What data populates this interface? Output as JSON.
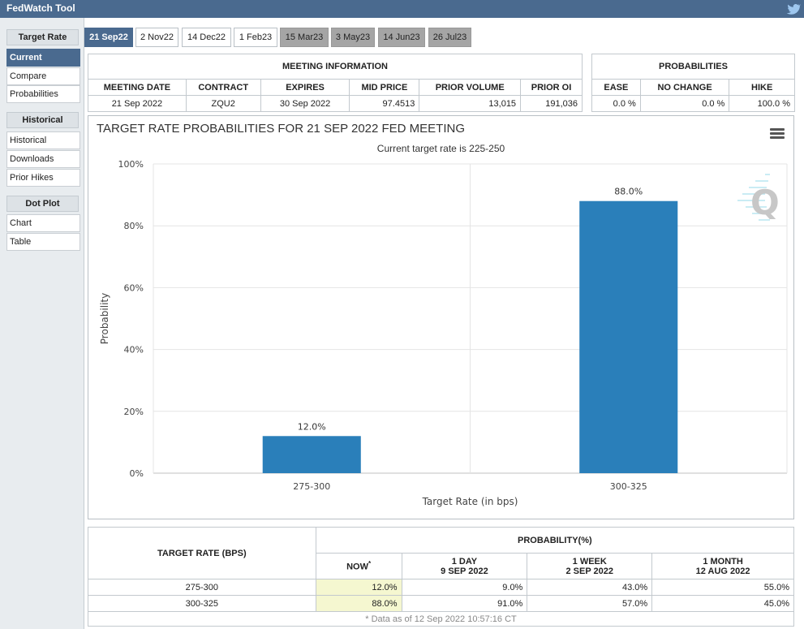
{
  "app": {
    "title": "FedWatch Tool",
    "twitter_icon": "twitter-icon"
  },
  "sidebar": {
    "sections": [
      {
        "heading": "Target Rate",
        "items": [
          "Current",
          "Compare",
          "Probabilities"
        ]
      },
      {
        "heading": "Historical",
        "items": [
          "Historical",
          "Downloads",
          "Prior Hikes"
        ]
      },
      {
        "heading": "Dot Plot",
        "items": [
          "Chart",
          "Table"
        ]
      }
    ],
    "active_item": "Current"
  },
  "tabs": [
    {
      "label": "21 Sep22",
      "state": "active"
    },
    {
      "label": "2 Nov22",
      "state": "normal"
    },
    {
      "label": "14 Dec22",
      "state": "normal"
    },
    {
      "label": "1 Feb23",
      "state": "normal"
    },
    {
      "label": "15 Mar23",
      "state": "grey"
    },
    {
      "label": "3 May23",
      "state": "grey"
    },
    {
      "label": "14 Jun23",
      "state": "grey"
    },
    {
      "label": "26 Jul23",
      "state": "grey"
    }
  ],
  "meeting_info": {
    "caption": "MEETING INFORMATION",
    "headers": [
      "MEETING DATE",
      "CONTRACT",
      "EXPIRES",
      "MID PRICE",
      "PRIOR VOLUME",
      "PRIOR OI"
    ],
    "row": [
      "21 Sep 2022",
      "ZQU2",
      "30 Sep 2022",
      "97.4513",
      "13,015",
      "191,036"
    ]
  },
  "probabilities": {
    "caption": "PROBABILITIES",
    "headers": [
      "EASE",
      "NO CHANGE",
      "HIKE"
    ],
    "row": [
      "0.0 %",
      "0.0 %",
      "100.0 %"
    ]
  },
  "chart_data": {
    "type": "bar",
    "title": "TARGET RATE PROBABILITIES FOR 21 SEP 2022 FED MEETING",
    "subtitle": "Current target rate is 225-250",
    "categories": [
      "275-300",
      "300-325"
    ],
    "values": [
      12.0,
      88.0
    ],
    "value_labels": [
      "12.0%",
      "88.0%"
    ],
    "xlabel": "Target Rate (in bps)",
    "ylabel": "Probability",
    "ylim": [
      0,
      100
    ],
    "yticks": [
      0,
      20,
      40,
      60,
      80,
      100
    ],
    "ytick_labels": [
      "0%",
      "20%",
      "40%",
      "60%",
      "80%",
      "100%"
    ],
    "grid": true,
    "bar_color": "#2a7fba",
    "menu_icon": "hamburger-menu-icon",
    "watermark_icon": "cme-q-logo-icon"
  },
  "lower_table": {
    "rate_header": "TARGET RATE (BPS)",
    "prob_header": "PROBABILITY(%)",
    "columns": [
      {
        "line1": "NOW",
        "line2": ""
      },
      {
        "line1": "1 DAY",
        "line2": "9 SEP 2022"
      },
      {
        "line1": "1 WEEK",
        "line2": "2 SEP 2022"
      },
      {
        "line1": "1 MONTH",
        "line2": "12 AUG 2022"
      }
    ],
    "now_marker": "*",
    "rows": [
      {
        "rate": "275-300",
        "values": [
          "12.0%",
          "9.0%",
          "43.0%",
          "55.0%"
        ]
      },
      {
        "rate": "300-325",
        "values": [
          "88.0%",
          "91.0%",
          "57.0%",
          "45.0%"
        ]
      }
    ],
    "footnote": "* Data as of 12 Sep 2022 10:57:16 CT"
  }
}
